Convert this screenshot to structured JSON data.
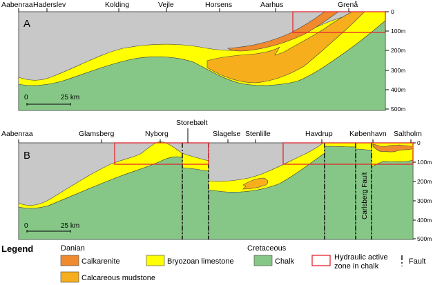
{
  "panel_a": {
    "label": "A",
    "towns": [
      "Aabenraa",
      "Haderslev",
      "Kolding",
      "Vejle",
      "Horsens",
      "Aarhus",
      "Grenå"
    ],
    "depth_ticks": [
      "0",
      "100m",
      "200m",
      "300m",
      "400m",
      "500m"
    ],
    "scale": {
      "start": "0",
      "end": "25 km"
    }
  },
  "panel_b": {
    "label": "B",
    "top_label": "Storebælt",
    "towns": [
      "Aabenraa",
      "Glamsberg",
      "Nyborg",
      "Slagelse",
      "Stenlille",
      "Havdrup",
      "København",
      "Saltholm"
    ],
    "depth_ticks": [
      "0",
      "100m",
      "200m",
      "300m",
      "400m",
      "500m"
    ],
    "scale": {
      "start": "0",
      "end": "25 km"
    },
    "fault_name": "Carlsberg Fault"
  },
  "legend": {
    "title": "Legend",
    "group_danian": "Danian",
    "group_cretaceous": "Cretaceous",
    "items": {
      "calkarenite": "Calkarenite",
      "bryozoan": "Bryozoan limestone",
      "calcareous": "Calcareous mudstone",
      "chalk": "Chalk",
      "hydraulic_line1": "Hydraulic active",
      "hydraulic_line2": "zone in chalk",
      "fault": "Fault"
    }
  },
  "colors": {
    "background_grey": "#c8c8c8",
    "chalk_green": "#86c787",
    "bryozoan_yellow": "#ffff00",
    "calcareous_orange": "#f6ae1d",
    "calkarenite_orange": "#f08a2e",
    "hydraulic_red": "#e3262f"
  }
}
